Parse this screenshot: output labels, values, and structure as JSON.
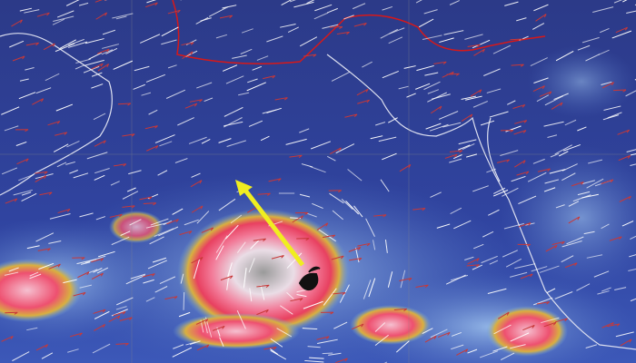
{
  "image": {
    "kind": "satellite-weather-map",
    "colors": {
      "background": "#2b3b8e",
      "cloud_light": "#8fb4e6",
      "cloud_core": "#f07090",
      "cloud_center": "#e8e0e8",
      "cloud_edge": "#d8b040",
      "wind_streak": "#ffffff",
      "wind_arrow": "#c83838",
      "track_arrow": "#f0ee20",
      "coastline": "#e8e8f0",
      "border": "#d81818"
    },
    "icons": [
      "cyclone-symbol-icon",
      "track-arrow-icon"
    ]
  }
}
